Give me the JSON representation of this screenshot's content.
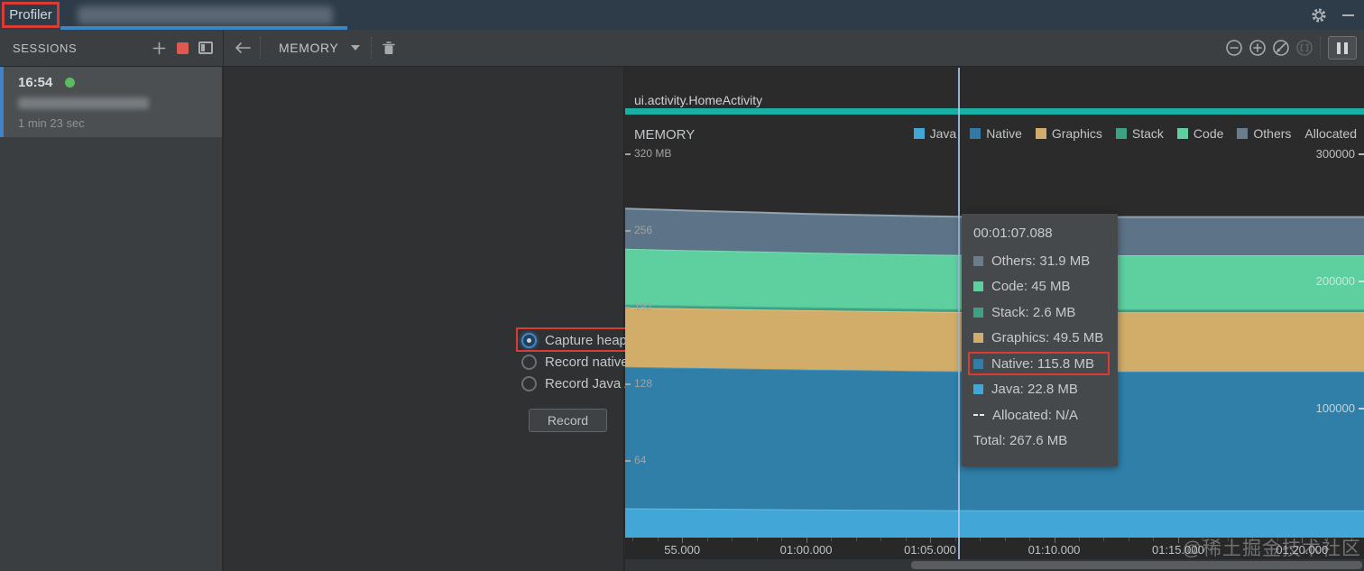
{
  "titlebar": {
    "tool_title": "Profiler",
    "tab_blurred": true
  },
  "toolbar": {
    "sessions_label": "SESSIONS",
    "process_view_label": "MEMORY",
    "icons": [
      "plus-icon",
      "stop-icon",
      "split-panel-icon",
      "back-arrow-icon",
      "dropdown-chevron-icon",
      "trash-icon",
      "zoom-out-icon",
      "zoom-in-icon",
      "reset-zoom-icon",
      "zoom-to-selection-icon",
      "pause-live-icon",
      "gear-icon",
      "minimize-icon"
    ]
  },
  "sessions": {
    "items": [
      {
        "time": "16:54",
        "status_dot_color": "#5cba63",
        "name_blurred": true,
        "duration": "1 min 23 sec",
        "selected": true
      }
    ]
  },
  "recording": {
    "options": [
      {
        "label": "Capture heap dump",
        "selected": true,
        "highlighted": true,
        "help_icon": "?"
      },
      {
        "label": "Record native allocations",
        "selected": false,
        "help_icon": "?"
      },
      {
        "label": "Record Java / Kotlin allocations",
        "selected": false,
        "help_icon": "?"
      }
    ],
    "record_label": "Record"
  },
  "chart": {
    "event_label": "ui.activity.HomeActivity",
    "event_bar_color": "#17b0a2",
    "title": "MEMORY",
    "legend": [
      {
        "label": "Java",
        "swatch": "#42a6d6"
      },
      {
        "label": "Native",
        "swatch": "#3279a5"
      },
      {
        "label": "Graphics",
        "swatch": "#d2ad69"
      },
      {
        "label": "Stack",
        "swatch": "#3da183"
      },
      {
        "label": "Code",
        "swatch": "#5ecf9e"
      },
      {
        "label": "Others",
        "swatch": "#697d8d"
      },
      {
        "label": "Allocated",
        "swatch": "none"
      }
    ],
    "tooltip": {
      "timestamp": "00:01:07.088",
      "rows": [
        {
          "label": "Others",
          "value": "31.9 MB",
          "swatch": "#697d8d"
        },
        {
          "label": "Code",
          "value": "45 MB",
          "swatch": "#5ecf9e"
        },
        {
          "label": "Stack",
          "value": "2.6 MB",
          "swatch": "#3da183"
        },
        {
          "label": "Graphics",
          "value": "49.5 MB",
          "swatch": "#d2ad69"
        },
        {
          "label": "Native",
          "value": "115.8 MB",
          "swatch": "#2f7fa9",
          "highlighted": true
        },
        {
          "label": "Java",
          "value": "22.8 MB",
          "swatch": "#42a6d6"
        },
        {
          "label": "Allocated",
          "value": "N/A",
          "swatch": "dash"
        },
        {
          "label": "Total",
          "value": "267.6 MB",
          "swatch": "none"
        }
      ]
    }
  },
  "chart_data": {
    "type": "area",
    "title": "MEMORY",
    "stacked": true,
    "x_range_seconds": [
      52.7,
      82.5
    ],
    "x": [
      52.7,
      55,
      58,
      60,
      62,
      65,
      67.088,
      70,
      72,
      75,
      78,
      80,
      82.5
    ],
    "series": [
      {
        "name": "Java",
        "color": "#42a6d6",
        "stroke": "#63bce4",
        "values": [
          24.5,
          24.2,
          23.8,
          23.5,
          23.3,
          23.0,
          22.8,
          22.8,
          22.8,
          22.8,
          22.8,
          22.8,
          22.8
        ]
      },
      {
        "name": "Native",
        "color": "#2f7fa9",
        "stroke": "#4595c0",
        "values": [
          118.0,
          117.6,
          117.1,
          116.8,
          116.5,
          116.0,
          115.8,
          115.8,
          115.8,
          115.8,
          115.8,
          115.8,
          115.8
        ]
      },
      {
        "name": "Graphics",
        "color": "#d2ad69",
        "stroke": "#e3c183",
        "values": [
          49.5,
          49.5,
          49.5,
          49.5,
          49.5,
          49.5,
          49.5,
          49.5,
          49.5,
          49.5,
          49.5,
          49.5,
          49.5
        ]
      },
      {
        "name": "Stack",
        "color": "#3da183",
        "stroke": "#4fb795",
        "values": [
          2.6,
          2.6,
          2.6,
          2.6,
          2.6,
          2.6,
          2.6,
          2.6,
          2.6,
          2.6,
          2.6,
          2.6,
          2.6
        ]
      },
      {
        "name": "Code",
        "color": "#5ecf9e",
        "stroke": "#7adfb4",
        "values": [
          46.5,
          46.1,
          45.8,
          45.5,
          45.3,
          45.1,
          45.0,
          45.0,
          45.0,
          45.0,
          45.0,
          45.0,
          45.0
        ]
      },
      {
        "name": "Others",
        "color": "#5d7387",
        "stroke": "#91a1ae",
        "values": [
          33.5,
          33.1,
          32.6,
          32.3,
          32.1,
          32.0,
          31.9,
          31.9,
          31.9,
          31.9,
          31.9,
          31.9,
          31.9
        ]
      }
    ],
    "y_left_axis": {
      "unit": "MB",
      "mb_per_85px": 64,
      "ticks": [
        {
          "v": 320,
          "label": "320 MB"
        },
        {
          "v": 256,
          "label": "256"
        },
        {
          "v": 192,
          "label": "192"
        },
        {
          "v": 128,
          "label": "128"
        },
        {
          "v": 64,
          "label": "64"
        }
      ]
    },
    "y_right_axis": {
      "unit": "allocated objects",
      "per_141px": 100000,
      "ticks": [
        {
          "v": 300000,
          "label": "300000"
        },
        {
          "v": 200000,
          "label": "200000"
        },
        {
          "v": 100000,
          "label": "100000"
        }
      ]
    },
    "x_axis": {
      "major_ticks": [
        {
          "t": 55,
          "label": "55.000"
        },
        {
          "t": 60,
          "label": "01:00.000"
        },
        {
          "t": 65,
          "label": "01:05.000"
        },
        {
          "t": 70,
          "label": "01:10.000"
        },
        {
          "t": 75,
          "label": "01:15.000"
        },
        {
          "t": 80,
          "label": "01:20.000"
        }
      ],
      "minor_step_seconds": 1
    },
    "crosshair_time_label": "00:01:07.088",
    "totals_at_crosshair": {
      "Total": "267.6 MB"
    }
  },
  "watermark": {
    "text": "@稀土掘金技术社区"
  },
  "colors": {
    "annotation_red": "#dc3b33",
    "titlebar_bg": "#2e3c49",
    "toolbar_bg": "#3c3f41",
    "chart_bg": "#2b2b2b",
    "selected_tab_underline": "#3d86c5",
    "crosshair": "#abcbec"
  }
}
